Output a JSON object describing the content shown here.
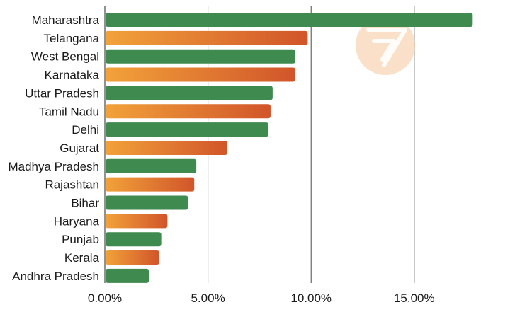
{
  "colors": {
    "green": "#3e8a4f",
    "orange_start": "#f2a23a",
    "orange_end": "#d1552a",
    "logo": "#f5c79b"
  },
  "logo_icon": "brand-logo-watermark",
  "chart_data": {
    "type": "bar",
    "orientation": "horizontal",
    "categories": [
      "Maharashtra",
      "Telangana",
      "West Bengal",
      "Karnataka",
      "Uttar Pradesh",
      "Tamil Nadu",
      "Delhi",
      "Gujarat",
      "Madhya Pradesh",
      "Rajashtan",
      "Bihar",
      "Haryana",
      "Punjab",
      "Kerala",
      "Andhra Pradesh"
    ],
    "values": [
      17.8,
      9.8,
      9.2,
      9.2,
      8.1,
      8.0,
      7.9,
      5.9,
      4.4,
      4.3,
      4.0,
      3.0,
      2.7,
      2.6,
      2.1
    ],
    "bar_colors": [
      "green",
      "orange",
      "green",
      "orange",
      "green",
      "orange",
      "green",
      "orange",
      "green",
      "orange",
      "green",
      "orange",
      "green",
      "orange",
      "green"
    ],
    "x_ticks": [
      0,
      5,
      10,
      15
    ],
    "x_tick_labels": [
      "0.00%",
      "5.00%",
      "10.00%",
      "15.00%"
    ],
    "xlim": [
      0,
      18
    ],
    "grid": "vertical",
    "title": "",
    "xlabel": "",
    "ylabel": ""
  }
}
